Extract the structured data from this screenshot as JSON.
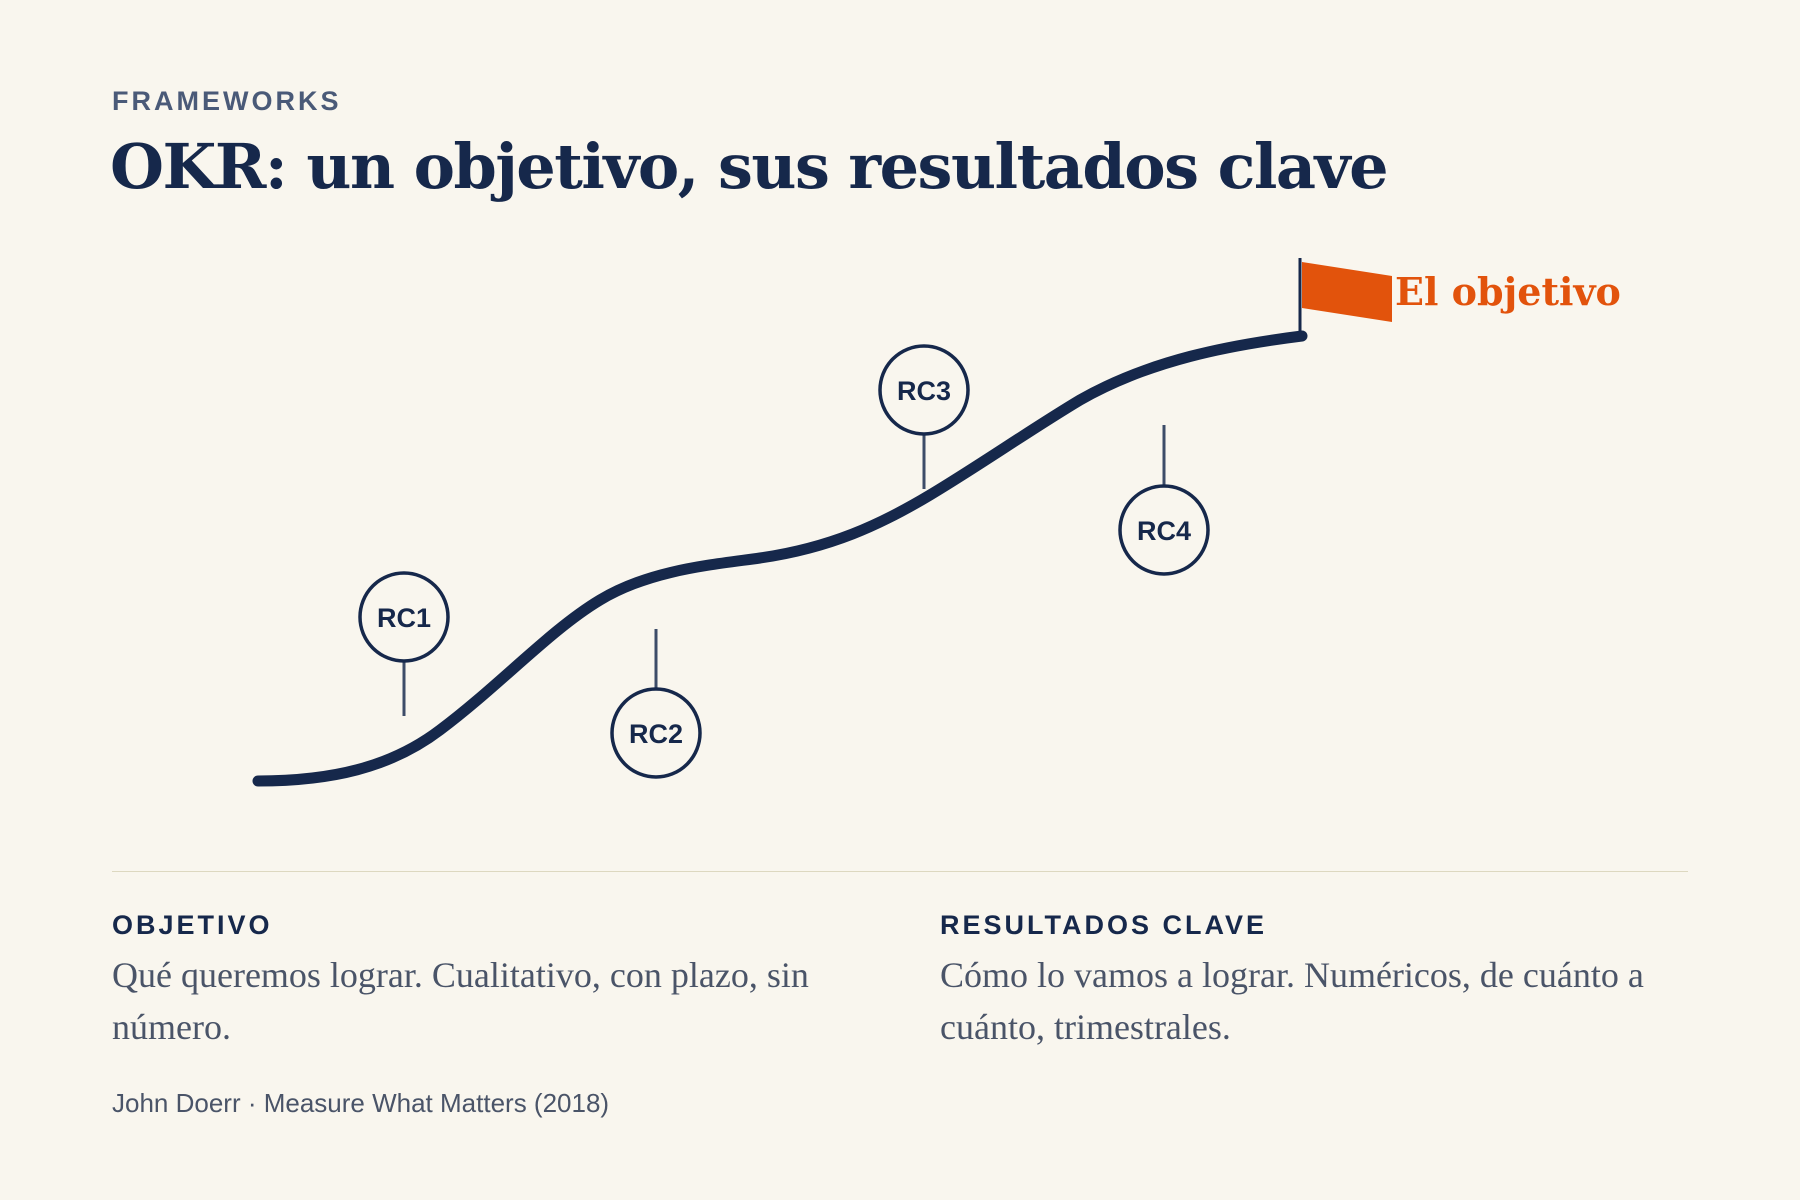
{
  "header": {
    "eyebrow": "FRAMEWORKS",
    "title": "OKR: un objetivo, sus resultados clave"
  },
  "diagram": {
    "goal_label": "El objetivo",
    "key_results": [
      {
        "label": "RC1",
        "placement": "above"
      },
      {
        "label": "RC2",
        "placement": "below"
      },
      {
        "label": "RC3",
        "placement": "above"
      },
      {
        "label": "RC4",
        "placement": "below"
      }
    ]
  },
  "columns": {
    "objective": {
      "heading": "OBJETIVO",
      "text": "Qué queremos lograr. Cualitativo, con plazo, sin número."
    },
    "key_results": {
      "heading": "RESULTADOS CLAVE",
      "text": "Cómo lo vamos a lograr. Numéricos, de cuánto a cuánto, trimestrales."
    }
  },
  "credit": "John Doerr · Measure What Matters (2018)",
  "colors": {
    "background": "#f9f6ee",
    "navy": "#16284b",
    "accent": "#e2530c",
    "muted": "#4a5468"
  }
}
